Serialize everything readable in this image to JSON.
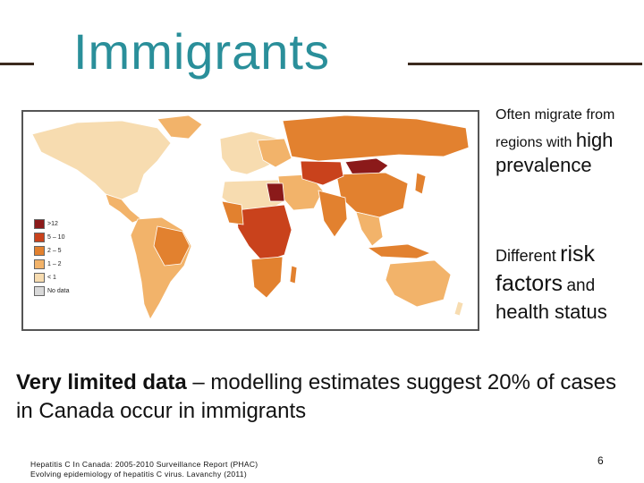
{
  "slide": {
    "title": "Immigrants",
    "page_number": "6"
  },
  "side_text": {
    "p1_line1": "Often migrate from",
    "p1_line2_small": "regions with",
    "p1_line2_big": "high",
    "p1_line3": "prevalence",
    "p2_line1_small": "Different",
    "p2_line1_big": "risk",
    "p2_line2_big": "factors",
    "p2_line2_small": "and",
    "p2_line3": "health status"
  },
  "main_text": {
    "bold": "Very limited data",
    "rest": " – modelling estimates suggest 20% of cases in Canada occur in immigrants"
  },
  "references": {
    "ref1": "Hepatitis C In Canada: 2005-2010 Surveillance Report (PHAC)",
    "ref2": "Evolving epidemiology of hepatitis C virus. Lavanchy (2011)"
  },
  "map": {
    "legend": [
      {
        "label": ">12",
        "color": "#8b1a1a"
      },
      {
        "label": "5 – 10",
        "color": "#c9421c"
      },
      {
        "label": "2 – 5",
        "color": "#e2812f"
      },
      {
        "label": "1 – 2",
        "color": "#f2b36a"
      },
      {
        "label": "< 1",
        "color": "#f7dcb0"
      },
      {
        "label": "No data",
        "color": "#d9d9d9"
      }
    ]
  }
}
